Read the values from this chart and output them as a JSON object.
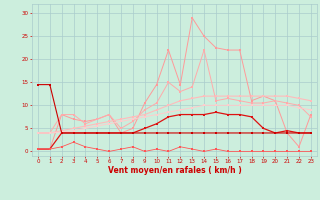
{
  "x": [
    0,
    1,
    2,
    3,
    4,
    5,
    6,
    7,
    8,
    9,
    10,
    11,
    12,
    13,
    14,
    15,
    16,
    17,
    18,
    19,
    20,
    21,
    22,
    23
  ],
  "series": [
    {
      "name": "rafales_max",
      "values": [
        0.5,
        0.5,
        8,
        7,
        6.5,
        7,
        8,
        4,
        5,
        10.5,
        14.5,
        22,
        14.5,
        29,
        25,
        22.5,
        22,
        22,
        11,
        12,
        11,
        4,
        1,
        8
      ],
      "color": "#ff9999",
      "lw": 0.7,
      "marker": "s",
      "ms": 1.5
    },
    {
      "name": "rafales_moy",
      "values": [
        4,
        4,
        8,
        8,
        6,
        7,
        8,
        5,
        6.5,
        9,
        10.5,
        15,
        13,
        14,
        22,
        11,
        11.5,
        11,
        10.5,
        10.5,
        11,
        10.5,
        10,
        7.5
      ],
      "color": "#ffaaaa",
      "lw": 0.7,
      "marker": "s",
      "ms": 1.5
    },
    {
      "name": "smooth_top",
      "values": [
        4,
        4,
        4.5,
        5,
        5.5,
        6,
        6.5,
        7,
        7.5,
        8,
        9,
        10,
        11,
        11.5,
        12,
        12,
        12,
        12,
        12,
        12,
        12,
        12,
        11.5,
        11
      ],
      "color": "#ffbbbb",
      "lw": 0.8,
      "marker": "s",
      "ms": 1.5
    },
    {
      "name": "smooth_mid",
      "values": [
        4,
        4,
        4.2,
        4.5,
        5,
        5.5,
        6,
        6.5,
        7,
        7.5,
        8,
        8.5,
        9,
        9.5,
        10,
        10,
        10,
        10,
        10,
        10,
        10,
        10,
        9.5,
        9
      ],
      "color": "#ffcccc",
      "lw": 0.7,
      "marker": "s",
      "ms": 1.5
    },
    {
      "name": "wind_speed",
      "values": [
        0.5,
        0.5,
        4,
        4,
        4,
        4,
        4,
        4,
        4,
        5,
        6,
        7.5,
        8,
        8,
        8,
        8.5,
        8,
        8,
        7.5,
        5,
        4,
        4.5,
        4,
        4
      ],
      "color": "#dd1111",
      "lw": 0.9,
      "marker": "s",
      "ms": 1.8
    },
    {
      "name": "flat_line",
      "values": [
        14.5,
        14.5,
        4,
        4,
        4,
        4,
        4,
        4,
        4,
        4,
        4,
        4,
        4,
        4,
        4,
        4,
        4,
        4,
        4,
        4,
        4,
        4,
        4,
        4
      ],
      "color": "#cc0000",
      "lw": 0.8,
      "marker": "s",
      "ms": 1.5
    },
    {
      "name": "low_zigzag",
      "values": [
        0.5,
        0.5,
        1,
        2,
        1,
        0.5,
        0,
        0.5,
        1,
        0,
        0.5,
        0,
        1,
        0.5,
        0,
        0.5,
        0,
        0,
        0,
        0,
        0,
        0,
        0,
        0
      ],
      "color": "#ff5555",
      "lw": 0.6,
      "marker": "s",
      "ms": 1.5
    }
  ],
  "xlabel": "Vent moyen/en rafales ( km/h )",
  "xlim": [
    -0.5,
    23.5
  ],
  "ylim": [
    -1,
    32
  ],
  "yticks": [
    0,
    5,
    10,
    15,
    20,
    25,
    30
  ],
  "xticks": [
    0,
    1,
    2,
    3,
    4,
    5,
    6,
    7,
    8,
    9,
    10,
    11,
    12,
    13,
    14,
    15,
    16,
    17,
    18,
    19,
    20,
    21,
    22,
    23
  ],
  "bg_color": "#cceedd",
  "grid_color": "#aacccc",
  "text_color": "#cc0000"
}
